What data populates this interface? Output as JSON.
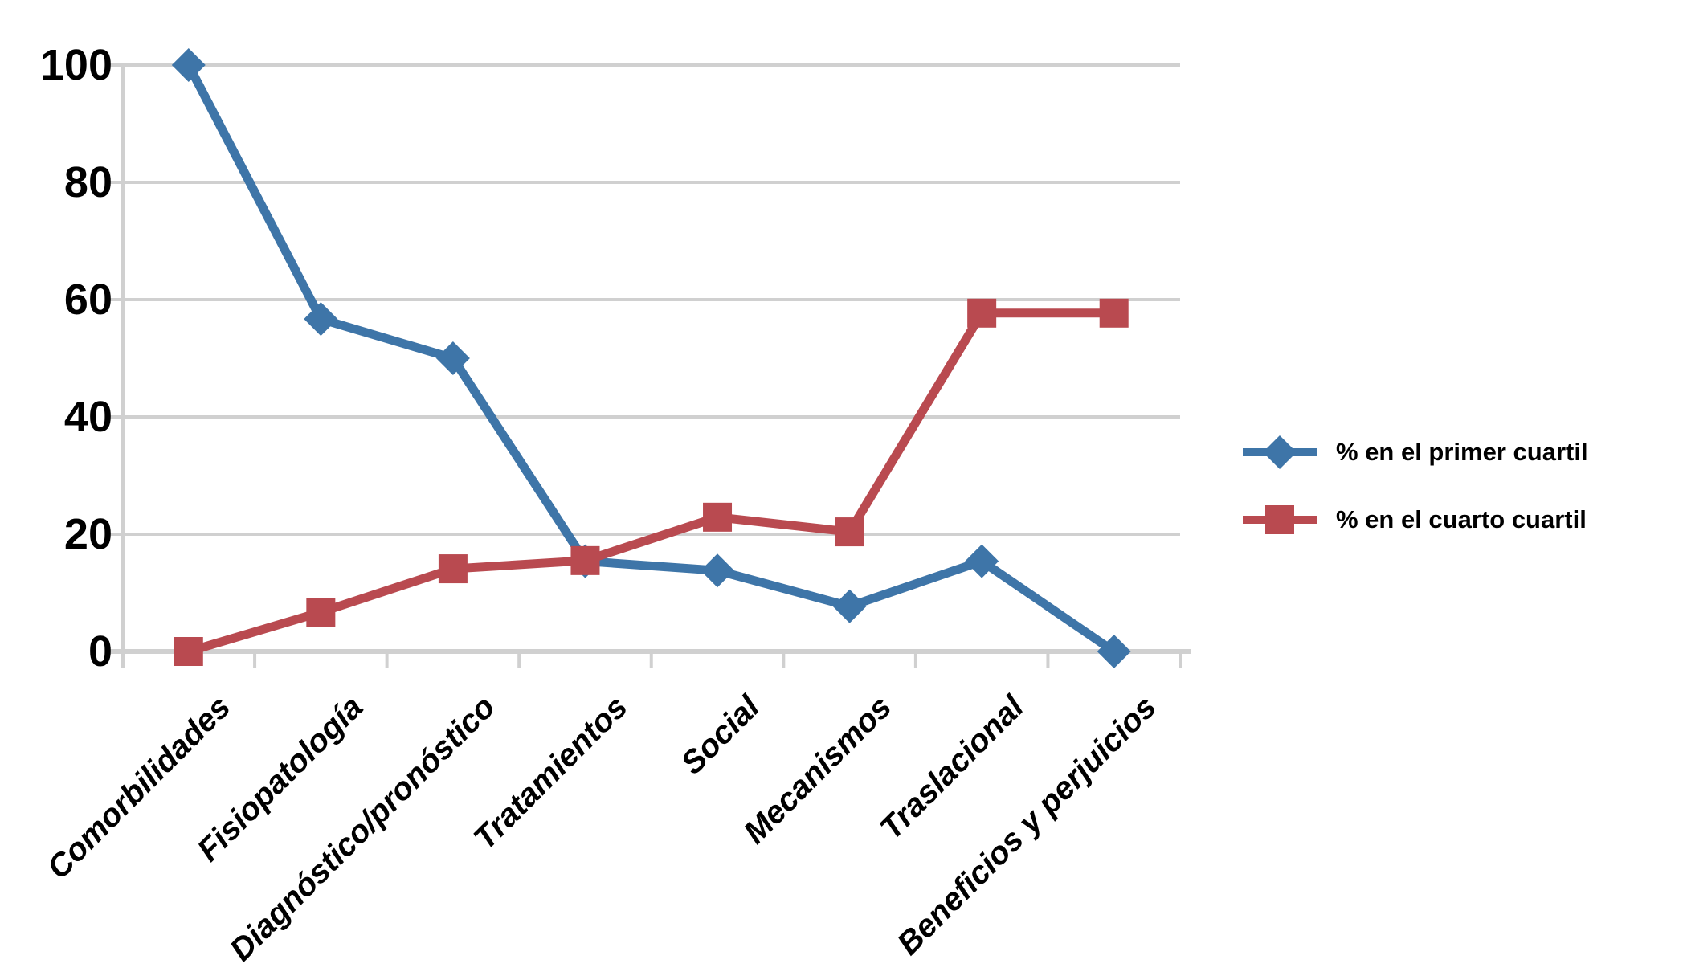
{
  "chart_data": {
    "type": "line",
    "title": "",
    "categories": [
      "Comorbilidades",
      "Fisiopatología",
      "Diagnóstico/pronóstico",
      "Tratamientos",
      "Social",
      "Mecanismos",
      "Traslacional",
      "Beneficios y perjuicios"
    ],
    "series": [
      {
        "name": "% en el primer cuartil",
        "marker": "diamond",
        "color": "#3E75A8",
        "values": [
          100,
          56.7,
          50,
          15.4,
          13.8,
          7.7,
          15.4,
          0
        ]
      },
      {
        "name": "% en el cuarto cuartil",
        "marker": "square",
        "color": "#B94A50",
        "values": [
          0,
          6.7,
          14.1,
          15.5,
          22.9,
          20.4,
          57.7,
          57.7
        ]
      }
    ],
    "xlabel": "",
    "ylabel": "",
    "ylim": [
      0,
      100
    ],
    "y_ticks": [
      100,
      80,
      60,
      40,
      20,
      0
    ],
    "grid": true,
    "legend_position": "right",
    "colors": {
      "gridline": "#D0D0D0",
      "axis": "#D0D0D0",
      "text": "#000000",
      "background": "#FFFFFF"
    }
  }
}
